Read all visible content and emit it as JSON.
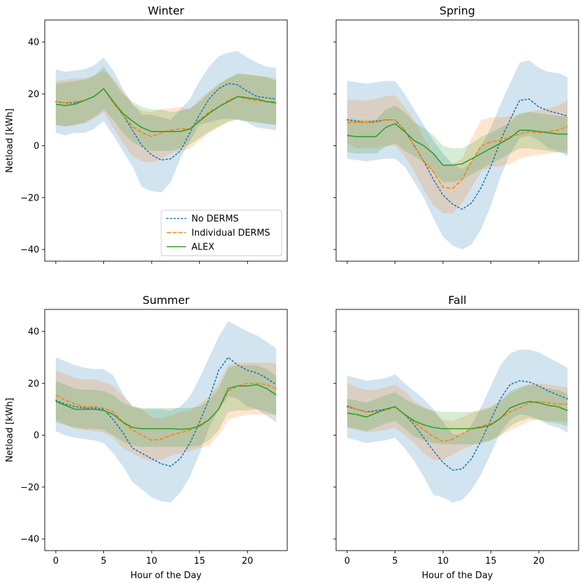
{
  "chart_data": {
    "type": "line",
    "x": [
      0,
      1,
      2,
      3,
      4,
      5,
      6,
      7,
      8,
      9,
      10,
      11,
      12,
      13,
      14,
      15,
      16,
      17,
      18,
      19,
      20,
      21,
      22,
      23
    ],
    "xlim": [
      -1.15,
      24.15
    ],
    "ylim": [
      -44.5,
      48.5
    ],
    "xticks": [
      "0",
      "5",
      "10",
      "15",
      "20"
    ],
    "yticks": [
      "40",
      "20",
      "0",
      "−20",
      "−40"
    ],
    "xlabel": "Hour of the Day",
    "ylabel": "Netload [kWh]",
    "colors": {
      "No DERMS": "#1f77b4",
      "Individual DERMS": "#ff7f0e",
      "ALEX": "#2ca02c"
    },
    "legend": {
      "location": "lower-right",
      "entries": [
        "No DERMS",
        "Individual DERMS",
        "ALEX"
      ]
    },
    "panels": [
      {
        "title": "Winter",
        "series": [
          {
            "name": "No DERMS",
            "mean": [
              17,
              16.5,
              16.5,
              17.5,
              19,
              22,
              17,
              12,
              6,
              0,
              -3.5,
              -5.5,
              -5,
              -2,
              5,
              12,
              18,
              22,
              24,
              23.5,
              21,
              19,
              18.5,
              18
            ],
            "lower": [
              5,
              4,
              5,
              5,
              6.5,
              9.5,
              4,
              -2,
              -8,
              -16,
              -17.5,
              -18,
              -14,
              -5,
              2,
              8,
              9,
              10,
              10.5,
              10,
              9,
              7,
              6.5,
              6
            ],
            "upper": [
              29.5,
              28.5,
              29,
              29.5,
              31,
              34,
              29,
              22,
              16,
              12,
              12,
              11,
              10,
              14,
              18,
              25,
              30.5,
              34.5,
              36,
              36.5,
              34,
              32,
              30.5,
              30
            ]
          },
          {
            "name": "Individual DERMS",
            "mean": [
              17,
              16.5,
              17,
              17.5,
              19,
              22,
              16.5,
              12,
              7.5,
              5,
              3.5,
              5,
              6,
              6.5,
              6.5,
              10,
              13,
              15,
              17.5,
              19,
              18,
              17.5,
              17,
              17
            ],
            "lower": [
              8,
              7.5,
              8,
              8.5,
              10.5,
              13,
              7,
              1,
              -4,
              -6,
              -6.5,
              -5,
              -3,
              -2,
              -1,
              2,
              5,
              7,
              9,
              10.5,
              9.5,
              9,
              8.5,
              8
            ],
            "upper": [
              25,
              25.5,
              26,
              26,
              27,
              29,
              26,
              21,
              16,
              13.5,
              13,
              14,
              14.5,
              15,
              14,
              18,
              21,
              24,
              26,
              27.5,
              27.5,
              27,
              26.5,
              26
            ]
          },
          {
            "name": "ALEX",
            "mean": [
              16,
              15.5,
              16,
              17.5,
              19,
              22,
              17,
              12.5,
              9.5,
              7,
              5.5,
              5.5,
              5.5,
              5.5,
              6.5,
              9.5,
              12.5,
              15,
              17,
              19,
              18.5,
              18,
              17,
              16.5
            ],
            "lower": [
              8,
              7.5,
              8,
              9,
              11,
              14,
              10,
              5,
              1.5,
              -0.5,
              -2,
              -2,
              -2,
              -1,
              0.5,
              3,
              5.5,
              7.5,
              9.5,
              10,
              9.5,
              9,
              8.5,
              8
            ],
            "upper": [
              24,
              24.5,
              25,
              25.5,
              27,
              30.5,
              25,
              20,
              17,
              15,
              14,
              14,
              13,
              13.5,
              14.5,
              17,
              20.5,
              23.5,
              26,
              28,
              27.5,
              27,
              26.5,
              25
            ]
          }
        ]
      },
      {
        "title": "Spring",
        "series": [
          {
            "name": "No DERMS",
            "mean": [
              10,
              9.5,
              9,
              9.5,
              10,
              10,
              6,
              0,
              -6,
              -13,
              -19,
              -22.5,
              -24.5,
              -22,
              -16,
              -8,
              2,
              10,
              17.5,
              18,
              15,
              13.5,
              12.5,
              11.5
            ],
            "lower": [
              -5,
              -5.5,
              -6,
              -5.5,
              -5,
              -5,
              -8,
              -14,
              -20,
              -28,
              -35,
              -38.5,
              -40,
              -38,
              -32,
              -23,
              -12,
              -3,
              3,
              4,
              2,
              -1,
              -2,
              -4
            ],
            "upper": [
              25,
              24.5,
              24,
              24.5,
              25,
              25,
              20,
              14,
              8,
              2,
              -3,
              -7,
              -9,
              -6,
              0,
              7,
              16,
              24,
              32,
              33,
              30,
              28.5,
              28,
              26.5
            ]
          },
          {
            "name": "Individual DERMS",
            "mean": [
              9,
              9,
              9,
              9,
              10,
              10,
              6,
              0,
              -6,
              -10,
              -16,
              -16.5,
              -13,
              -6,
              0,
              1.5,
              2,
              3.5,
              4.5,
              5.5,
              5,
              5.5,
              6,
              7.5
            ],
            "lower": [
              1,
              -1,
              -1,
              -1,
              0,
              0,
              -4,
              -10,
              -17,
              -23,
              -26,
              -26,
              -22,
              -16,
              -10,
              -8,
              -8,
              -7,
              -5,
              -4,
              -3.5,
              -3,
              -2.5,
              -2
            ],
            "upper": [
              18,
              17.5,
              17.5,
              18,
              19,
              19.5,
              15,
              10,
              3,
              -3,
              -7,
              -7,
              -5,
              3,
              10,
              11,
              11,
              11.5,
              12,
              13,
              14,
              14.5,
              15.5,
              17.5
            ]
          },
          {
            "name": "ALEX",
            "mean": [
              4,
              3.5,
              3.5,
              3.5,
              7,
              8.5,
              5.5,
              2,
              0,
              -3,
              -7.5,
              -7.5,
              -7,
              -5,
              -3,
              -1,
              1,
              3,
              6,
              6,
              5.5,
              5,
              4.5,
              4.5
            ],
            "lower": [
              -2.5,
              -3,
              -3,
              -3,
              -0.5,
              1,
              -2,
              -4,
              -6.5,
              -10,
              -14,
              -14,
              -13,
              -11,
              -9,
              -7,
              -5,
              -3,
              -1,
              -1,
              -1.5,
              -2,
              -2.5,
              -3
            ],
            "upper": [
              10.5,
              10,
              10,
              10,
              14,
              15.5,
              13,
              9,
              7,
              4,
              0,
              -1,
              -1,
              1,
              3.5,
              5,
              7,
              9,
              12.5,
              13,
              12.5,
              12,
              11.5,
              11.5
            ]
          }
        ]
      },
      {
        "title": "Summer",
        "series": [
          {
            "name": "No DERMS",
            "mean": [
              13.5,
              12,
              11,
              10.5,
              10.5,
              10,
              6,
              1,
              -5,
              -7,
              -9,
              -11,
              -12,
              -9,
              -3,
              5,
              14,
              25,
              30,
              27,
              25,
              24,
              22,
              19.5
            ],
            "lower": [
              1.5,
              0,
              -1,
              -1.5,
              -2,
              -3,
              -7,
              -12,
              -18,
              -21,
              -24,
              -25.5,
              -26,
              -22,
              -16,
              -7,
              3,
              10,
              15,
              14,
              11,
              10,
              7.5,
              5
            ],
            "upper": [
              30,
              28.5,
              27,
              26,
              25.5,
              25.5,
              23,
              16,
              11,
              10,
              10,
              10,
              9.5,
              11,
              15,
              22,
              30,
              38,
              44,
              42,
              40,
              38.5,
              36,
              33.5
            ]
          },
          {
            "name": "Individual DERMS",
            "mean": [
              15.5,
              13.5,
              12,
              11,
              11,
              10.5,
              9,
              5,
              2,
              0,
              -2,
              -1.5,
              0,
              1,
              2,
              4,
              6,
              10,
              17,
              19,
              20,
              20,
              19.5,
              18
            ],
            "lower": [
              6,
              4,
              2.5,
              2,
              1.5,
              1,
              -1,
              -5,
              -7,
              -9,
              -10,
              -9.5,
              -8,
              -7,
              -6,
              -5,
              -4,
              0,
              6,
              7,
              8,
              8,
              8,
              8
            ],
            "upper": [
              25,
              23.5,
              22,
              21.5,
              21.5,
              20.5,
              19,
              15,
              11.5,
              10,
              7,
              6.5,
              7.5,
              9,
              9.5,
              12,
              15,
              20,
              27,
              28,
              28,
              28,
              28,
              27.5
            ]
          },
          {
            "name": "ALEX",
            "mean": [
              13,
              11.5,
              10,
              10,
              10,
              9.5,
              8,
              5,
              3,
              2.5,
              2.5,
              2.5,
              2.5,
              2.3,
              2.5,
              3.5,
              6,
              10,
              18,
              19,
              19,
              19.5,
              18,
              15.5
            ],
            "lower": [
              5,
              4,
              3,
              2.5,
              2.5,
              2,
              0,
              -2.5,
              -4,
              -4.5,
              -4.5,
              -4.5,
              -4.5,
              -4.5,
              -4.5,
              -4,
              -2,
              2,
              9,
              9.5,
              9.5,
              10,
              9,
              7.5
            ],
            "upper": [
              21,
              19.5,
              18,
              17.5,
              17.5,
              17,
              15.5,
              12.5,
              11,
              10.5,
              10.5,
              10.5,
              10.5,
              10.5,
              10.5,
              11,
              13.5,
              18,
              26,
              27,
              27,
              27,
              25.5,
              23
            ]
          }
        ]
      },
      {
        "title": "Fall",
        "series": [
          {
            "name": "No DERMS",
            "mean": [
              11,
              10,
              9,
              9.5,
              10,
              11,
              8,
              4,
              -1,
              -6,
              -10.5,
              -13.5,
              -13,
              -9,
              -2,
              6,
              14,
              19.5,
              21,
              20.5,
              19,
              17,
              15.5,
              14
            ],
            "lower": [
              -1,
              -2,
              -3,
              -2.5,
              -2,
              -1,
              -5,
              -10,
              -16,
              -23,
              -24,
              -26,
              -25,
              -21,
              -15,
              -7,
              1,
              6,
              8,
              7.5,
              6,
              4,
              3,
              1
            ],
            "upper": [
              23,
              22,
              21,
              21.5,
              22,
              23.5,
              20,
              17,
              14,
              10,
              5,
              0.5,
              0,
              4,
              11,
              19,
              27,
              31.5,
              33,
              33,
              32,
              30,
              28,
              26
            ]
          },
          {
            "name": "Individual DERMS",
            "mean": [
              11.5,
              10,
              9,
              9,
              9.5,
              11,
              8,
              5,
              2,
              -0.5,
              -2.5,
              -1.5,
              0.5,
              2.5,
              3.5,
              4.5,
              6.5,
              9,
              10.5,
              12.5,
              13,
              12.5,
              12,
              12
            ],
            "lower": [
              3,
              2,
              1,
              1.5,
              2,
              3,
              0,
              -3,
              -7,
              -9.5,
              -9.5,
              -7.5,
              -5.5,
              -4,
              -3,
              -2,
              0,
              2,
              3.5,
              5.5,
              6,
              5.5,
              5.5,
              5
            ],
            "upper": [
              20,
              18.5,
              17.5,
              17.5,
              18.5,
              19.5,
              17,
              13,
              11,
              9,
              6,
              5.5,
              7,
              8.5,
              10,
              11,
              13.5,
              16,
              18,
              19.5,
              20,
              19.5,
              19,
              18.5
            ]
          },
          {
            "name": "ALEX",
            "mean": [
              8.5,
              8,
              7,
              8.5,
              10,
              11,
              8,
              5.5,
              4,
              3,
              2.5,
              2.5,
              2.5,
              2.5,
              3,
              4,
              6.5,
              10.5,
              12,
              13,
              12.5,
              11.5,
              11,
              9.5
            ],
            "lower": [
              3,
              2.5,
              1.5,
              3,
              4.5,
              5.5,
              2.5,
              -0.5,
              -2,
              -3,
              -3.5,
              -3.5,
              -3.5,
              -3.5,
              -3,
              -2,
              0,
              3.5,
              5.5,
              6.5,
              6,
              5,
              4.5,
              3.5
            ],
            "upper": [
              14,
              13.5,
              12.5,
              14,
              15.5,
              16.5,
              14,
              12,
              10.5,
              9.5,
              9,
              9,
              9,
              9,
              9.5,
              10.5,
              13,
              17,
              18.5,
              19.5,
              19,
              18,
              17.5,
              16
            ]
          }
        ]
      }
    ]
  }
}
